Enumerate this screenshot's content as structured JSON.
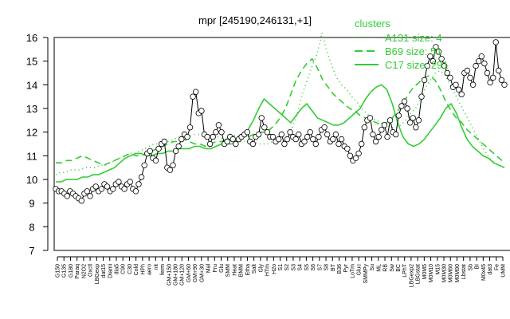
{
  "chart_data": {
    "type": "line",
    "title": "mpr [245190,246131,+1]",
    "xlabel": "",
    "ylabel": "",
    "ylim": [
      7,
      16
    ],
    "yticks": [
      7,
      8,
      9,
      10,
      11,
      12,
      13,
      14,
      15,
      16
    ],
    "x_tick_labels": [
      "G150",
      "G135",
      "G180",
      "Paraq",
      "N2O2",
      "Oxctl",
      "LBGexp",
      "dat15",
      "Diami",
      "dia5",
      "C90",
      "C30",
      "Cold",
      "HPh",
      "aero",
      "nit",
      "ferm",
      "GM+150",
      "GM+180",
      "GM+120",
      "GM+60",
      "GM+90",
      "GM+30",
      "Mal",
      "Fru",
      "Glu",
      "SMM",
      "Heat",
      "BMM",
      "Etha",
      "Salt",
      "Gly",
      "HTm",
      "H2o",
      "S1",
      "S2",
      "S3",
      "S4",
      "S5",
      "S6",
      "S7",
      "S8",
      "BT",
      "B36",
      "Pyr",
      "LoTm",
      "Gluc",
      "SMMPy",
      "Su",
      "ML",
      "RB",
      "Sw",
      "BC",
      "LPhT",
      "LBGexp2",
      "LBGstat",
      "M0M5",
      "M0M10",
      "M15",
      "M0M30",
      "M0M60",
      "M0M90",
      "Lbstat",
      "Sb",
      "BI",
      "M0x45",
      "dat3",
      "Fe",
      "UMM"
    ],
    "legend": {
      "title": "clusters",
      "placement": "top-right",
      "entries": [
        "A131 size: 4",
        "B69 size: 51",
        "C17 size: 291"
      ]
    },
    "colors": {
      "cluster_lines": "#33cc33",
      "data_line": "#000000",
      "markers_fill": "#ffffff"
    },
    "n_points": 158,
    "series": [
      {
        "name": "mpr",
        "style": "solid-black-with-circles",
        "values": [
          9.6,
          9.5,
          9.5,
          9.4,
          9.3,
          9.5,
          9.4,
          9.3,
          9.2,
          9.1,
          9.4,
          9.5,
          9.3,
          9.6,
          9.7,
          9.5,
          9.6,
          9.8,
          9.7,
          9.5,
          9.6,
          9.8,
          9.9,
          9.7,
          9.6,
          9.8,
          9.9,
          9.6,
          9.5,
          9.8,
          10.1,
          10.6,
          11.1,
          11.2,
          10.9,
          10.8,
          11.3,
          11.5,
          11.6,
          10.5,
          10.4,
          10.6,
          11.2,
          11.4,
          11.7,
          11.9,
          11.8,
          12.2,
          13.5,
          13.7,
          12.8,
          12.9,
          11.9,
          11.8,
          11.5,
          11.8,
          12.0,
          12.3,
          12.0,
          11.5,
          11.6,
          11.8,
          11.7,
          11.5,
          11.7,
          11.8,
          11.9,
          12.0,
          11.6,
          11.5,
          11.8,
          11.9,
          12.6,
          12.2,
          12.0,
          11.8,
          11.8,
          11.6,
          11.7,
          11.9,
          11.5,
          11.7,
          12.0,
          11.8,
          11.7,
          11.9,
          11.5,
          11.6,
          11.8,
          12.0,
          11.7,
          11.5,
          11.8,
          12.1,
          12.2,
          11.9,
          11.6,
          11.7,
          11.9,
          11.5,
          11.7,
          11.4,
          11.3,
          11.0,
          10.8,
          10.9,
          11.1,
          11.5,
          12.2,
          12.5,
          12.6,
          11.9,
          11.6,
          11.8,
          12.1,
          12.3,
          11.8,
          12.5,
          12.0,
          11.9,
          12.7,
          13.1,
          13.3,
          13.0,
          12.4,
          12.6,
          12.2,
          12.5,
          13.5,
          14.2,
          14.8,
          15.2,
          15.0,
          15.6,
          15.4,
          15.1,
          14.8,
          14.5,
          14.3,
          13.9,
          14.0,
          13.8,
          13.6,
          14.5,
          14.6,
          14.3,
          14.0,
          14.8,
          15.0,
          15.2,
          14.9,
          14.5,
          14.1,
          14.3,
          15.8,
          14.6,
          14.2,
          14.0
        ]
      },
      {
        "name": "A131 size: 4",
        "style": "dotted-green",
        "values": [
          10.2,
          10.3,
          10.3,
          10.4,
          10.4,
          10.4,
          10.5,
          10.5,
          10.5,
          10.6,
          10.6,
          10.7,
          10.8,
          10.9,
          11.0,
          11.1,
          11.1,
          11.2,
          11.3,
          11.4,
          11.5,
          11.5,
          11.6,
          11.6,
          11.7,
          11.8,
          11.8,
          11.8,
          11.9,
          11.9,
          11.9,
          11.9,
          11.8,
          11.8,
          11.7,
          11.7,
          11.7,
          11.6,
          11.6,
          11.6,
          11.6,
          11.5,
          11.5,
          11.5,
          11.6,
          11.6,
          11.7,
          11.8,
          12.2,
          12.8,
          13.6,
          14.2,
          14.8,
          15.3,
          16.2,
          15.4,
          14.8,
          14.3,
          14.0,
          13.8,
          13.5,
          13.3,
          13.0,
          12.8,
          12.6,
          12.5,
          12.4,
          12.3,
          12.2,
          12.2,
          12.3,
          12.5,
          12.8,
          13.0,
          13.4,
          13.9,
          14.2,
          14.5,
          14.6,
          14.4,
          14.0,
          13.6,
          13.2,
          12.8,
          12.4,
          12.0,
          11.6,
          11.2,
          10.9,
          10.7,
          10.6,
          10.5
        ]
      },
      {
        "name": "B69 size: 51",
        "style": "dashed-green",
        "values": [
          10.7,
          10.7,
          10.8,
          10.8,
          10.9,
          11.0,
          10.9,
          10.8,
          10.7,
          10.6,
          10.7,
          10.8,
          10.9,
          11.0,
          11.1,
          11.0,
          11.0,
          11.1,
          11.2,
          11.3,
          11.4,
          11.5,
          11.6,
          11.6,
          11.7,
          11.6,
          11.5,
          11.5,
          11.4,
          11.5,
          11.6,
          11.6,
          11.7,
          11.8,
          11.9,
          11.8,
          11.8,
          11.9,
          12.0,
          12.0,
          12.1,
          12.3,
          12.6,
          13.0,
          13.6,
          14.2,
          14.6,
          14.9,
          15.1,
          14.7,
          14.2,
          13.9,
          13.6,
          13.4,
          13.2,
          13.0,
          12.9,
          12.7,
          12.6,
          12.5,
          12.4,
          12.3,
          12.4,
          12.6,
          12.9,
          13.2,
          13.6,
          13.9,
          14.1,
          14.3,
          14.4,
          14.2,
          13.8,
          13.3,
          12.9,
          12.6,
          12.4,
          12.1,
          11.9,
          11.7,
          11.5,
          11.3,
          11.1,
          10.9,
          10.7
        ]
      },
      {
        "name": "C17 size: 291",
        "style": "solid-green",
        "values": [
          9.9,
          9.9,
          10.0,
          10.0,
          10.0,
          10.1,
          10.1,
          10.2,
          10.2,
          10.3,
          10.4,
          10.5,
          10.7,
          10.9,
          11.0,
          11.1,
          11.1,
          11.0,
          11.0,
          11.1,
          11.1,
          11.2,
          11.2,
          11.3,
          11.3,
          11.3,
          11.4,
          11.4,
          11.3,
          11.3,
          11.4,
          11.5,
          11.5,
          11.5,
          11.6,
          11.8,
          12.1,
          12.5,
          13.0,
          13.4,
          13.2,
          13.0,
          12.8,
          12.6,
          12.4,
          12.7,
          13.0,
          13.2,
          12.9,
          12.6,
          12.5,
          12.4,
          12.3,
          12.3,
          12.4,
          12.6,
          12.8,
          13.0,
          13.4,
          13.7,
          13.9,
          14.0,
          13.8,
          13.2,
          12.4,
          11.8,
          11.5,
          11.4,
          11.5,
          11.7,
          12.0,
          12.3,
          12.6,
          13.0,
          13.2,
          12.8,
          12.2,
          11.7,
          11.4,
          11.2,
          11.0,
          10.9,
          10.7,
          10.6,
          10.5
        ]
      }
    ]
  }
}
